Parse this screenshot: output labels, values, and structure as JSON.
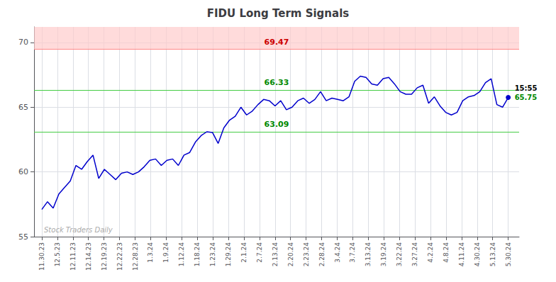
{
  "chart_data": {
    "type": "line",
    "title": "FIDU Long Term Signals",
    "color": "#0000cc",
    "x": [
      0,
      0.3659,
      0.7317,
      1.0976,
      1.4634,
      1.8293,
      2.1951,
      2.561,
      2.9268,
      3.2927,
      3.6585,
      4.0244,
      4.3902,
      4.7561,
      5.122,
      5.4878,
      5.8537,
      6.2195,
      6.5854,
      6.9512,
      7.3171,
      7.6829,
      8.0488,
      8.4146,
      8.7805,
      9.1463,
      9.5122,
      9.878,
      10.2439,
      10.6098,
      10.9756,
      11.3415,
      11.7073,
      12.0732,
      12.439,
      12.8049,
      13.1707,
      13.5366,
      13.9024,
      14.2683,
      14.6341,
      15,
      15.3659,
      15.7317,
      16.0976,
      16.4634,
      16.8293,
      17.1951,
      17.561,
      17.9268,
      18.2927,
      18.6585,
      19.0244,
      19.3902,
      19.7561,
      20.122,
      20.4878,
      20.8537,
      21.2195,
      21.5854,
      21.9512,
      22.3171,
      22.6829,
      23.0488,
      23.4146,
      23.7805,
      24.1463,
      24.5122,
      24.878,
      25.2439,
      25.6098,
      25.9756,
      26.3415,
      26.7073,
      27.0732,
      27.439,
      27.8049,
      28.1707,
      28.5366,
      28.9024,
      29.2683,
      29.6341,
      30
    ],
    "values": [
      57.1,
      57.7,
      57.2,
      58.3,
      58.8,
      59.3,
      60.5,
      60.2,
      60.8,
      61.3,
      59.5,
      60.2,
      59.8,
      59.4,
      59.9,
      60.0,
      59.8,
      60.0,
      60.4,
      60.9,
      61.0,
      60.5,
      60.9,
      61.0,
      60.5,
      61.3,
      61.5,
      62.3,
      62.8,
      63.1,
      63.05,
      62.2,
      63.4,
      64.0,
      64.3,
      65.0,
      64.4,
      64.7,
      65.2,
      65.6,
      65.5,
      65.1,
      65.5,
      64.8,
      65.0,
      65.5,
      65.7,
      65.3,
      65.6,
      66.2,
      65.5,
      65.7,
      65.6,
      65.5,
      65.8,
      67.0,
      67.4,
      67.3,
      66.8,
      66.7,
      67.2,
      67.3,
      66.8,
      66.2,
      66.0,
      66.0,
      66.5,
      66.7,
      65.3,
      65.8,
      65.1,
      64.6,
      64.4,
      64.6,
      65.5,
      65.8,
      65.9,
      66.2,
      66.9,
      67.2,
      65.2,
      65.0,
      65.75
    ],
    "xlim": [
      -0.5,
      30.7
    ],
    "xticks": [
      {
        "value": 0,
        "label": "11.30.23"
      },
      {
        "value": 1,
        "label": "12.5.23"
      },
      {
        "value": 2,
        "label": "12.11.23"
      },
      {
        "value": 3,
        "label": "12.14.23"
      },
      {
        "value": 4,
        "label": "12.19.23"
      },
      {
        "value": 5,
        "label": "12.22.23"
      },
      {
        "value": 6,
        "label": "12.28.23"
      },
      {
        "value": 7,
        "label": "1.3.24"
      },
      {
        "value": 8,
        "label": "1.9.24"
      },
      {
        "value": 9,
        "label": "1.12.24"
      },
      {
        "value": 10,
        "label": "1.18.24"
      },
      {
        "value": 11,
        "label": "1.23.24"
      },
      {
        "value": 12,
        "label": "1.29.24"
      },
      {
        "value": 13,
        "label": "2.1.24"
      },
      {
        "value": 14,
        "label": "2.7.24"
      },
      {
        "value": 15,
        "label": "2.13.24"
      },
      {
        "value": 16,
        "label": "2.20.24"
      },
      {
        "value": 17,
        "label": "2.23.24"
      },
      {
        "value": 18,
        "label": "2.28.24"
      },
      {
        "value": 19,
        "label": "3.4.24"
      },
      {
        "value": 20,
        "label": "3.7.24"
      },
      {
        "value": 21,
        "label": "3.13.24"
      },
      {
        "value": 22,
        "label": "3.19.24"
      },
      {
        "value": 23,
        "label": "3.22.24"
      },
      {
        "value": 24,
        "label": "3.27.24"
      },
      {
        "value": 25,
        "label": "4.2.24"
      },
      {
        "value": 26,
        "label": "4.8.24"
      },
      {
        "value": 27,
        "label": "4.11.24"
      },
      {
        "value": 28,
        "label": "4.30.24"
      },
      {
        "value": 29,
        "label": "5.13.24"
      },
      {
        "value": 30,
        "label": "5.30.24"
      }
    ],
    "ylim": [
      55,
      71.2
    ],
    "yticks": [
      55,
      60,
      65,
      70
    ],
    "grid": true,
    "reference_lines": [
      {
        "value": 69.47,
        "label": "69.47",
        "color": "#ff8888",
        "label_color": "#cc0000",
        "band_color": "#ffcccc"
      },
      {
        "value": 66.33,
        "label": "66.33",
        "color": "#44cc44",
        "label_color": "#008800"
      },
      {
        "value": 63.09,
        "label": "63.09",
        "color": "#44cc44",
        "label_color": "#008800"
      }
    ],
    "end_labels": [
      {
        "text": "15:55",
        "color": "#000000"
      },
      {
        "text": "65.75",
        "color": "#008800"
      }
    ],
    "watermark": {
      "text": "Stock Traders Daily",
      "color": "#aaaaaa"
    }
  }
}
